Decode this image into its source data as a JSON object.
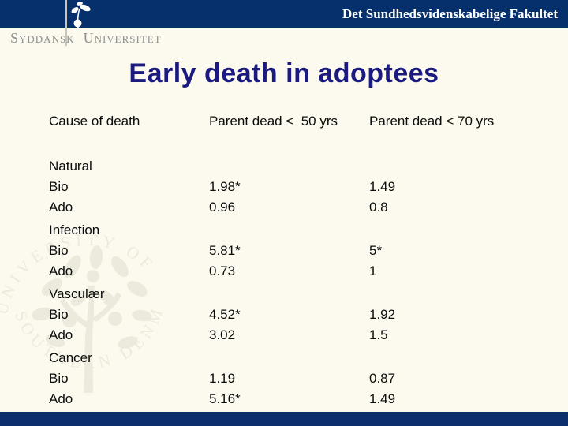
{
  "header": {
    "university_name_left": "Syddansk",
    "university_name_right": "Universitet",
    "faculty": "Det Sundhedsvidenskabelige Fakultet"
  },
  "title": "Early death in adoptees",
  "table": {
    "columns": [
      "Cause of death",
      "Parent dead <  50 yrs",
      "Parent dead < 70 yrs"
    ],
    "groups": [
      {
        "cause": "Natural",
        "rows": [
          {
            "label": "Bio",
            "c50": "1.98*",
            "c70": "1.49"
          },
          {
            "label": "Ado",
            "c50": "0.96",
            "c70": "0.8"
          }
        ]
      },
      {
        "cause": "Infection",
        "rows": [
          {
            "label": "Bio",
            "c50": "5.81*",
            "c70": "5*"
          },
          {
            "label": "Ado",
            "c50": "0.73",
            "c70": "1"
          }
        ]
      },
      {
        "cause": "Vasculær",
        "rows": [
          {
            "label": "Bio",
            "c50": "4.52*",
            "c70": "1.92"
          },
          {
            "label": "Ado",
            "c50": "3.02",
            "c70": "1.5"
          }
        ]
      },
      {
        "cause": "Cancer",
        "rows": [
          {
            "label": "Bio",
            "c50": "1.19",
            "c70": "0.87"
          },
          {
            "label": "Ado",
            "c50": "5.16*",
            "c70": "1.49"
          }
        ]
      }
    ]
  },
  "watermark": {
    "text_top": "UNIVERSITY OF",
    "text_bottom": "SOUTHERN  DENMARK"
  },
  "colors": {
    "banner": "#06306c",
    "footer_bar": "#0b2f6d",
    "title": "#1a1a80",
    "background": "#fcfaef",
    "university_text": "#8e8e8e",
    "watermark": "#eceadd"
  }
}
